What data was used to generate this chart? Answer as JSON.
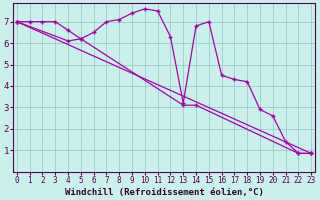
{
  "xlabel": "Windchill (Refroidissement éolien,°C)",
  "bg_color": "#caf0eb",
  "line_color": "#aa00aa",
  "grid_color": "#99cccc",
  "series1_x": [
    0,
    1,
    2,
    3,
    4,
    5,
    6,
    7,
    8,
    9,
    10,
    11,
    12,
    13,
    14,
    15,
    16,
    17,
    18,
    19,
    20,
    21,
    22,
    23
  ],
  "series1_y": [
    7.0,
    7.0,
    7.0,
    7.0,
    6.6,
    6.2,
    6.5,
    7.0,
    7.1,
    7.4,
    7.6,
    7.5,
    6.3,
    3.2,
    6.8,
    7.0,
    4.5,
    4.3,
    4.2,
    2.9,
    2.6,
    1.4,
    0.85,
    0.85
  ],
  "series2_x": [
    0,
    23
  ],
  "series2_y": [
    7.0,
    0.85
  ],
  "series3_x": [
    0,
    4,
    5,
    13,
    14,
    22,
    23
  ],
  "series3_y": [
    7.0,
    6.1,
    6.2,
    3.1,
    3.1,
    0.85,
    0.85
  ],
  "xlim": [
    -0.3,
    23.3
  ],
  "ylim": [
    0,
    7.85
  ],
  "xticks": [
    0,
    1,
    2,
    3,
    4,
    5,
    6,
    7,
    8,
    9,
    10,
    11,
    12,
    13,
    14,
    15,
    16,
    17,
    18,
    19,
    20,
    21,
    22,
    23
  ],
  "yticks": [
    1,
    2,
    3,
    4,
    5,
    6,
    7
  ],
  "fontsize_xlabel": 6.5,
  "fontsize_xtick": 5.5,
  "fontsize_ytick": 6.5
}
